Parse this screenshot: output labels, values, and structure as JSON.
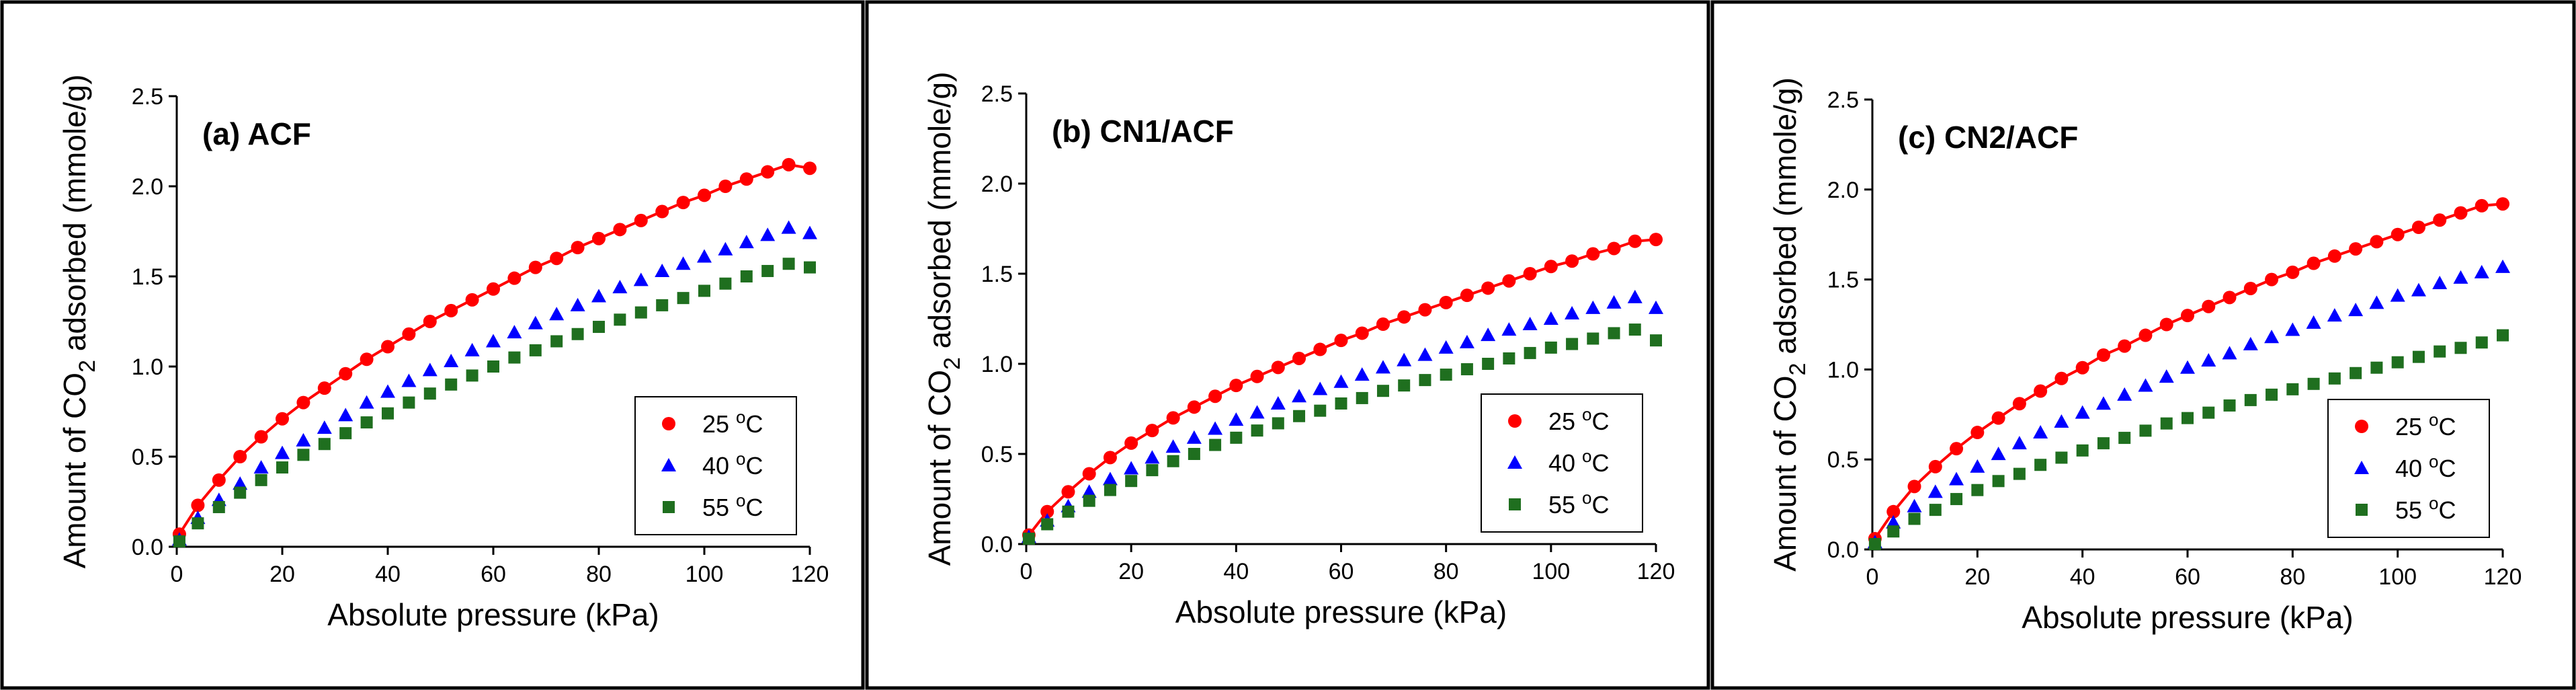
{
  "chart_data": [
    {
      "type": "scatter",
      "title": "(a) ACF",
      "xlabel": "Absolute pressure (kPa)",
      "ylabel_parts": [
        "Amount of CO",
        "2",
        " adsorbed (mmole/g)"
      ],
      "xlim": [
        0,
        120
      ],
      "ylim": [
        0,
        2.5
      ],
      "xticks": [
        "0",
        "20",
        "40",
        "60",
        "80",
        "100",
        "120"
      ],
      "yticks": [
        "0.0",
        "0.5",
        "1.0",
        "1.5",
        "2.0",
        "2.5"
      ],
      "legend_position": "bottom-right",
      "x": [
        0.5,
        4,
        8,
        12,
        16,
        20,
        24,
        28,
        32,
        36,
        40,
        44,
        48,
        52,
        56,
        60,
        64,
        68,
        72,
        76,
        80,
        84,
        88,
        92,
        96,
        100,
        104,
        108,
        112,
        116,
        120
      ],
      "series": [
        {
          "name": "25 oC",
          "label_main": "25 ",
          "label_sup": "o",
          "label_unit": "C",
          "color": "#ff0000",
          "marker": "circle",
          "fit": true,
          "values": [
            0.07,
            0.23,
            0.37,
            0.5,
            0.61,
            0.71,
            0.8,
            0.88,
            0.96,
            1.04,
            1.11,
            1.18,
            1.25,
            1.31,
            1.37,
            1.43,
            1.49,
            1.55,
            1.6,
            1.66,
            1.71,
            1.76,
            1.81,
            1.86,
            1.91,
            1.95,
            2.0,
            2.04,
            2.08,
            2.12,
            2.1
          ]
        },
        {
          "name": "40 oC",
          "label_main": "40 ",
          "label_sup": "o",
          "label_unit": "C",
          "color": "#0000ff",
          "marker": "triangle",
          "fit": false,
          "values": [
            0.04,
            0.16,
            0.26,
            0.35,
            0.44,
            0.52,
            0.59,
            0.66,
            0.73,
            0.8,
            0.86,
            0.92,
            0.98,
            1.03,
            1.09,
            1.14,
            1.19,
            1.24,
            1.29,
            1.34,
            1.39,
            1.44,
            1.48,
            1.53,
            1.57,
            1.61,
            1.65,
            1.69,
            1.73,
            1.77,
            1.74
          ]
        },
        {
          "name": "55 oC",
          "label_main": "55 ",
          "label_sup": "o",
          "label_unit": "C",
          "color": "#1f6f1f",
          "marker": "square",
          "fit": false,
          "values": [
            0.03,
            0.13,
            0.22,
            0.3,
            0.37,
            0.44,
            0.51,
            0.57,
            0.63,
            0.69,
            0.74,
            0.8,
            0.85,
            0.9,
            0.95,
            1.0,
            1.05,
            1.09,
            1.14,
            1.18,
            1.22,
            1.26,
            1.3,
            1.34,
            1.38,
            1.42,
            1.46,
            1.5,
            1.53,
            1.57,
            1.55
          ]
        }
      ]
    },
    {
      "type": "scatter",
      "title": "(b) CN1/ACF",
      "xlabel": "Absolute pressure (kPa)",
      "ylabel_parts": [
        "Amount of CO",
        "2",
        " adsorbed (mmole/g)"
      ],
      "xlim": [
        0,
        120
      ],
      "ylim": [
        0,
        2.5
      ],
      "xticks": [
        "0",
        "20",
        "40",
        "60",
        "80",
        "100",
        "120"
      ],
      "yticks": [
        "0.0",
        "0.5",
        "1.0",
        "1.5",
        "2.0",
        "2.5"
      ],
      "legend_position": "bottom-right",
      "x": [
        0.5,
        4,
        8,
        12,
        16,
        20,
        24,
        28,
        32,
        36,
        40,
        44,
        48,
        52,
        56,
        60,
        64,
        68,
        72,
        76,
        80,
        84,
        88,
        92,
        96,
        100,
        104,
        108,
        112,
        116,
        120
      ],
      "series": [
        {
          "name": "25 oC",
          "label_main": "25 ",
          "label_sup": "o",
          "label_unit": "C",
          "color": "#ff0000",
          "marker": "circle",
          "fit": true,
          "values": [
            0.05,
            0.18,
            0.29,
            0.39,
            0.48,
            0.56,
            0.63,
            0.7,
            0.76,
            0.82,
            0.88,
            0.93,
            0.98,
            1.03,
            1.08,
            1.13,
            1.17,
            1.22,
            1.26,
            1.3,
            1.34,
            1.38,
            1.42,
            1.46,
            1.5,
            1.54,
            1.57,
            1.61,
            1.64,
            1.68,
            1.69
          ]
        },
        {
          "name": "40 oC",
          "label_main": "40 ",
          "label_sup": "o",
          "label_unit": "C",
          "color": "#0000ff",
          "marker": "triangle",
          "fit": false,
          "values": [
            0.04,
            0.13,
            0.21,
            0.29,
            0.36,
            0.42,
            0.48,
            0.54,
            0.59,
            0.64,
            0.69,
            0.73,
            0.78,
            0.82,
            0.86,
            0.9,
            0.94,
            0.98,
            1.02,
            1.05,
            1.09,
            1.12,
            1.16,
            1.19,
            1.22,
            1.25,
            1.28,
            1.31,
            1.34,
            1.37,
            1.31
          ]
        },
        {
          "name": "55 oC",
          "label_main": "55 ",
          "label_sup": "o",
          "label_unit": "C",
          "color": "#1f6f1f",
          "marker": "square",
          "fit": false,
          "values": [
            0.03,
            0.11,
            0.18,
            0.24,
            0.3,
            0.35,
            0.41,
            0.46,
            0.5,
            0.55,
            0.59,
            0.63,
            0.67,
            0.71,
            0.74,
            0.78,
            0.81,
            0.85,
            0.88,
            0.91,
            0.94,
            0.97,
            1.0,
            1.03,
            1.06,
            1.09,
            1.11,
            1.14,
            1.17,
            1.19,
            1.13
          ]
        }
      ]
    },
    {
      "type": "scatter",
      "title": "(c) CN2/ACF",
      "xlabel": "Absolute pressure (kPa)",
      "ylabel_parts": [
        "Amount of CO",
        "2",
        " adsorbed (mmole/g)"
      ],
      "xlim": [
        0,
        120
      ],
      "ylim": [
        0,
        2.5
      ],
      "xticks": [
        "0",
        "20",
        "40",
        "60",
        "80",
        "100",
        "120"
      ],
      "yticks": [
        "0.0",
        "0.5",
        "1.0",
        "1.5",
        "2.0",
        "2.5"
      ],
      "legend_position": "bottom-right",
      "x": [
        0.5,
        4,
        8,
        12,
        16,
        20,
        24,
        28,
        32,
        36,
        40,
        44,
        48,
        52,
        56,
        60,
        64,
        68,
        72,
        76,
        80,
        84,
        88,
        92,
        96,
        100,
        104,
        108,
        112,
        116,
        120
      ],
      "series": [
        {
          "name": "25 oC",
          "label_main": "25 ",
          "label_sup": "o",
          "label_unit": "C",
          "color": "#ff0000",
          "marker": "circle",
          "fit": true,
          "values": [
            0.06,
            0.21,
            0.35,
            0.46,
            0.56,
            0.65,
            0.73,
            0.81,
            0.88,
            0.95,
            1.01,
            1.08,
            1.13,
            1.19,
            1.25,
            1.3,
            1.35,
            1.4,
            1.45,
            1.5,
            1.54,
            1.59,
            1.63,
            1.67,
            1.71,
            1.75,
            1.79,
            1.83,
            1.87,
            1.91,
            1.92
          ]
        },
        {
          "name": "40 oC",
          "label_main": "40 ",
          "label_sup": "o",
          "label_unit": "C",
          "color": "#0000ff",
          "marker": "triangle",
          "fit": false,
          "values": [
            0.04,
            0.15,
            0.24,
            0.32,
            0.39,
            0.46,
            0.53,
            0.59,
            0.65,
            0.71,
            0.76,
            0.81,
            0.86,
            0.91,
            0.96,
            1.01,
            1.05,
            1.09,
            1.14,
            1.18,
            1.22,
            1.26,
            1.3,
            1.33,
            1.37,
            1.41,
            1.44,
            1.48,
            1.51,
            1.54,
            1.57
          ]
        },
        {
          "name": "55 oC",
          "label_main": "55 ",
          "label_sup": "o",
          "label_unit": "C",
          "color": "#1f6f1f",
          "marker": "square",
          "fit": false,
          "values": [
            0.03,
            0.1,
            0.17,
            0.22,
            0.28,
            0.33,
            0.38,
            0.42,
            0.47,
            0.51,
            0.55,
            0.59,
            0.62,
            0.66,
            0.7,
            0.73,
            0.76,
            0.8,
            0.83,
            0.86,
            0.89,
            0.92,
            0.95,
            0.98,
            1.01,
            1.04,
            1.07,
            1.1,
            1.12,
            1.15,
            1.19
          ]
        }
      ]
    }
  ]
}
